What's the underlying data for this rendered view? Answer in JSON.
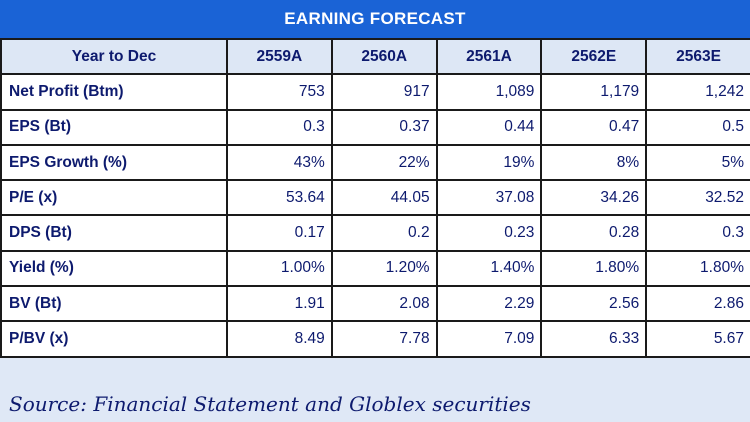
{
  "title": "EARNING FORECAST",
  "header": {
    "row_label": "Year to Dec",
    "years": [
      "2559A",
      "2560A",
      "2561A",
      "2562E",
      "2563E"
    ]
  },
  "rows": [
    {
      "label": "Net Profit (Btm)",
      "values": [
        "753",
        "917",
        "1,089",
        "1,179",
        "1,242"
      ]
    },
    {
      "label": "EPS (Bt)",
      "values": [
        "0.3",
        "0.37",
        "0.44",
        "0.47",
        "0.5"
      ]
    },
    {
      "label": "EPS Growth (%)",
      "values": [
        "43%",
        "22%",
        "19%",
        "8%",
        "5%"
      ]
    },
    {
      "label": "P/E (x)",
      "values": [
        "53.64",
        "44.05",
        "37.08",
        "34.26",
        "32.52"
      ]
    },
    {
      "label": "DPS (Bt)",
      "values": [
        "0.17",
        "0.2",
        "0.23",
        "0.28",
        "0.3"
      ]
    },
    {
      "label": "Yield (%)",
      "values": [
        "1.00%",
        "1.20%",
        "1.40%",
        "1.80%",
        "1.80%"
      ]
    },
    {
      "label": "BV (Bt)",
      "values": [
        "1.91",
        "2.08",
        "2.29",
        "2.56",
        "2.86"
      ]
    },
    {
      "label": "P/BV (x)",
      "values": [
        "8.49",
        "7.78",
        "7.09",
        "6.33",
        "5.67"
      ]
    }
  ],
  "source": "Source: Financial Statement and Globlex securities",
  "colors": {
    "title_bar": "#1a63d6",
    "text": "#0d1a6e",
    "header_bg": "#dde7f5"
  }
}
